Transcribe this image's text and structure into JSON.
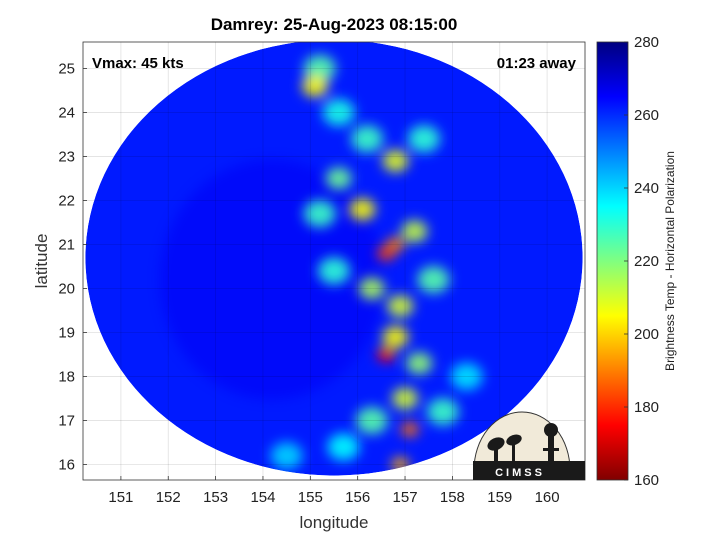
{
  "chart_data": {
    "type": "heatmap",
    "title": "Damrey: 25-Aug-2023 08:15:00",
    "xlabel": "longitude",
    "ylabel": "latitude",
    "xlim": [
      150.2,
      160.8
    ],
    "ylim": [
      15.65,
      25.6
    ],
    "xticks": [
      "151",
      "152",
      "153",
      "154",
      "155",
      "156",
      "157",
      "158",
      "159",
      "160"
    ],
    "yticks": [
      "16",
      "17",
      "18",
      "19",
      "20",
      "21",
      "22",
      "23",
      "24",
      "25"
    ],
    "grid": true,
    "annotations": {
      "vmax": "Vmax: 45 kts",
      "away": "01:23 away"
    },
    "colorbar": {
      "label": "Brightness Temp - Horizontal Polarization",
      "range": [
        160,
        280
      ],
      "ticks": [
        "160",
        "180",
        "200",
        "220",
        "240",
        "260",
        "280"
      ],
      "colormap": "jet"
    },
    "swath": {
      "center": [
        155.5,
        20.7
      ],
      "radius_deg_x": 5.25,
      "radius_deg_y": 4.95,
      "background_value": 262
    },
    "features": [
      {
        "lon": 155.2,
        "lat": 25.0,
        "value": 225
      },
      {
        "lon": 155.1,
        "lat": 24.6,
        "value": 205
      },
      {
        "lon": 155.6,
        "lat": 24.0,
        "value": 232
      },
      {
        "lon": 156.2,
        "lat": 23.4,
        "value": 228
      },
      {
        "lon": 156.8,
        "lat": 22.9,
        "value": 208
      },
      {
        "lon": 157.4,
        "lat": 23.4,
        "value": 230
      },
      {
        "lon": 155.6,
        "lat": 22.5,
        "value": 222
      },
      {
        "lon": 156.1,
        "lat": 21.8,
        "value": 205
      },
      {
        "lon": 155.2,
        "lat": 21.7,
        "value": 228
      },
      {
        "lon": 156.8,
        "lat": 21.0,
        "value": 190
      },
      {
        "lon": 156.6,
        "lat": 20.8,
        "value": 182
      },
      {
        "lon": 157.2,
        "lat": 21.3,
        "value": 212
      },
      {
        "lon": 155.5,
        "lat": 20.4,
        "value": 230
      },
      {
        "lon": 156.3,
        "lat": 20.0,
        "value": 215
      },
      {
        "lon": 156.9,
        "lat": 19.6,
        "value": 210
      },
      {
        "lon": 157.6,
        "lat": 20.2,
        "value": 225
      },
      {
        "lon": 156.6,
        "lat": 18.5,
        "value": 175
      },
      {
        "lon": 156.8,
        "lat": 18.9,
        "value": 205
      },
      {
        "lon": 157.3,
        "lat": 18.3,
        "value": 218
      },
      {
        "lon": 157.0,
        "lat": 17.5,
        "value": 210
      },
      {
        "lon": 157.1,
        "lat": 16.8,
        "value": 188
      },
      {
        "lon": 156.3,
        "lat": 17.0,
        "value": 225
      },
      {
        "lon": 156.9,
        "lat": 16.0,
        "value": 195
      },
      {
        "lon": 155.7,
        "lat": 16.4,
        "value": 235
      },
      {
        "lon": 154.5,
        "lat": 16.2,
        "value": 240
      },
      {
        "lon": 157.8,
        "lat": 17.2,
        "value": 228
      },
      {
        "lon": 158.3,
        "lat": 18.0,
        "value": 238
      }
    ]
  },
  "logo": {
    "text": "CIMSS"
  }
}
